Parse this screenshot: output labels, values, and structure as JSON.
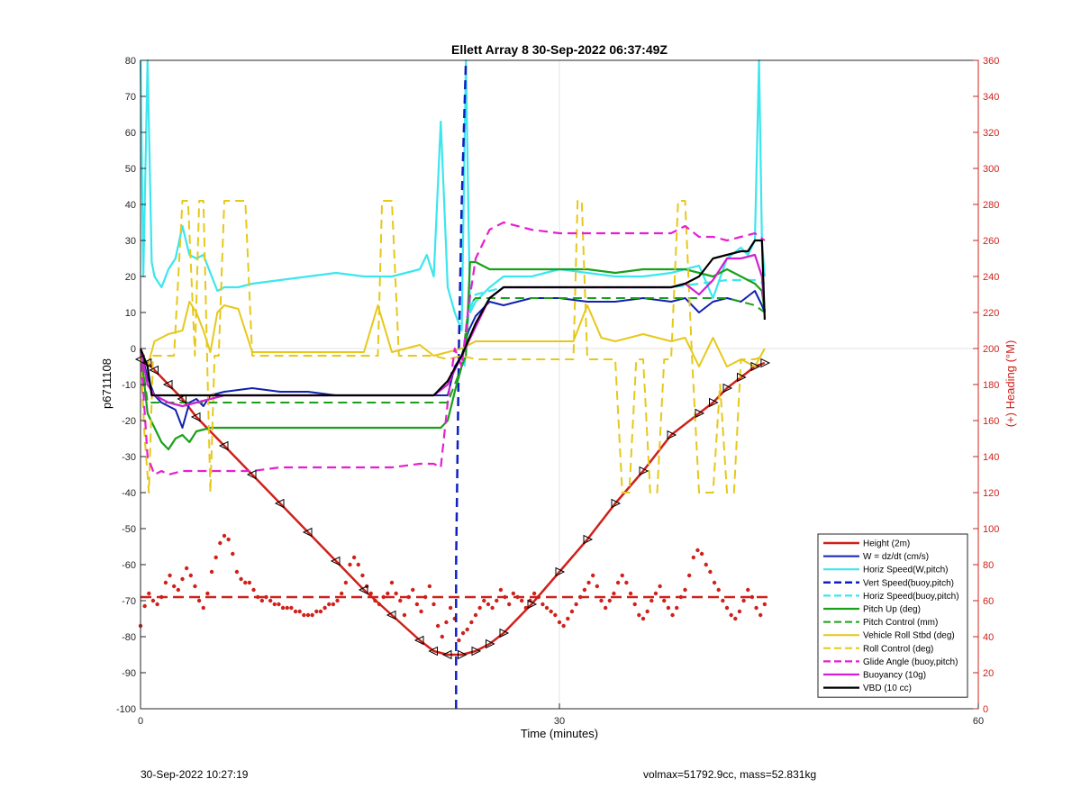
{
  "footer": {
    "timestamp": "30-Sep-2022 10:27:19",
    "volmax_mass": "volmax=51792.9cc, mass=52.831kg"
  },
  "chart_data": {
    "type": "line",
    "title": "Ellett Array 8 30-Sep-2022 06:37:49Z",
    "xlabel": "Time (minutes)",
    "ylabel": "p6711108",
    "ylabel_right": "(+) Heading (°M)",
    "xlim": [
      0,
      60
    ],
    "ylim": [
      -100,
      80
    ],
    "ylim_right": [
      0,
      360
    ],
    "xticks": [
      "0",
      "30",
      "60"
    ],
    "yticks": [
      -100,
      -90,
      -80,
      -70,
      -60,
      -50,
      -40,
      -30,
      -20,
      -10,
      0,
      10,
      20,
      30,
      40,
      50,
      60,
      70,
      80
    ],
    "yticks_right": [
      0,
      20,
      40,
      60,
      80,
      100,
      120,
      140,
      160,
      180,
      200,
      220,
      240,
      260,
      280,
      300,
      320,
      340,
      360
    ],
    "grid": true,
    "legend_position": "bottom-right",
    "heading_series": {
      "name": "",
      "color": "#d0201a",
      "mean_heading": 62,
      "x": [
        0.0,
        0.3,
        0.6,
        0.9,
        1.2,
        1.5,
        1.8,
        2.1,
        2.4,
        2.7,
        3.0,
        3.3,
        3.6,
        3.9,
        4.2,
        4.5,
        4.8,
        5.1,
        5.4,
        5.7,
        6.0,
        6.3,
        6.6,
        6.9,
        7.2,
        7.5,
        7.8,
        8.1,
        8.4,
        8.7,
        9.0,
        9.3,
        9.6,
        9.9,
        10.2,
        10.5,
        10.8,
        11.1,
        11.4,
        11.7,
        12.0,
        12.3,
        12.6,
        12.9,
        13.2,
        13.5,
        13.8,
        14.1,
        14.4,
        14.7,
        15.0,
        15.3,
        15.6,
        15.9,
        16.2,
        16.5,
        16.8,
        17.1,
        17.4,
        17.7,
        18.0,
        18.3,
        18.6,
        18.9,
        19.2,
        19.5,
        19.8,
        20.1,
        20.4,
        20.7,
        21.0,
        21.3,
        21.6,
        21.9,
        22.2,
        22.5,
        22.8,
        23.1,
        23.4,
        23.7,
        24.0,
        24.3,
        24.6,
        24.9,
        25.2,
        25.5,
        25.8,
        26.1,
        26.4,
        26.7,
        27.0,
        27.3,
        27.6,
        27.9,
        28.2,
        28.5,
        28.8,
        29.1,
        29.4,
        29.7,
        30.0,
        30.3,
        30.6,
        30.9,
        31.2,
        31.5,
        31.8,
        32.1,
        32.4,
        32.7,
        33.0,
        33.3,
        33.6,
        33.9,
        34.2,
        34.5,
        34.8,
        35.1,
        35.4,
        35.7,
        36.0,
        36.3,
        36.6,
        36.9,
        37.2,
        37.5,
        37.8,
        38.1,
        38.4,
        38.7,
        39.0,
        39.3,
        39.6,
        39.9,
        40.2,
        40.5,
        40.8,
        41.1,
        41.4,
        41.7,
        42.0,
        42.3,
        42.6,
        42.9,
        43.2,
        43.5,
        43.8,
        44.1,
        44.4,
        44.7
      ],
      "y": [
        46,
        57,
        64,
        60,
        58,
        62,
        70,
        74,
        68,
        66,
        72,
        78,
        74,
        68,
        60,
        56,
        64,
        76,
        84,
        92,
        96,
        94,
        86,
        76,
        72,
        70,
        70,
        66,
        62,
        60,
        62,
        60,
        58,
        58,
        56,
        56,
        56,
        54,
        54,
        52,
        52,
        52,
        54,
        54,
        56,
        58,
        58,
        60,
        64,
        70,
        80,
        84,
        80,
        74,
        68,
        64,
        60,
        58,
        62,
        64,
        70,
        64,
        60,
        52,
        62,
        66,
        58,
        54,
        62,
        68,
        58,
        46,
        40,
        48,
        56,
        50,
        38,
        42,
        44,
        48,
        52,
        56,
        60,
        58,
        56,
        60,
        66,
        62,
        58,
        64,
        62,
        60,
        56,
        60,
        64,
        62,
        58,
        56,
        54,
        52,
        48,
        46,
        50,
        54,
        58,
        62,
        66,
        70,
        74,
        68,
        60,
        56,
        60,
        64,
        70,
        74,
        70,
        64,
        58,
        52,
        50,
        54,
        60,
        64,
        68,
        60,
        56,
        52,
        56,
        62,
        66,
        74,
        84,
        88,
        86,
        80,
        76,
        70,
        66,
        60,
        56,
        52,
        50,
        54,
        60,
        66,
        62,
        56,
        52,
        58
      ]
    },
    "series": [
      {
        "name": "Height (2m)",
        "color": "#d0201a",
        "style": "solid",
        "width": 2.5,
        "x": [
          0,
          0.5,
          1,
          2,
          3,
          4,
          6,
          8,
          10,
          12,
          14,
          16,
          18,
          20,
          21,
          22,
          23,
          24,
          25,
          26,
          28,
          30,
          32,
          34,
          36,
          38,
          40,
          41,
          42,
          43,
          44,
          44.7
        ],
        "y": [
          -3,
          -4,
          -6,
          -10,
          -14,
          -19,
          -27,
          -35,
          -43,
          -51,
          -59,
          -67,
          -74,
          -81,
          -84,
          -85,
          -85,
          -84,
          -82,
          -79,
          -71,
          -62,
          -53,
          -43,
          -34,
          -24,
          -18,
          -15,
          -11,
          -8,
          -5,
          -4
        ]
      },
      {
        "name": "W = dz/dt (cm/s)",
        "color": "#1020b0",
        "style": "solid",
        "width": 2,
        "x": [
          0,
          0.5,
          1,
          1.5,
          2,
          2.5,
          3,
          3.5,
          4,
          4.5,
          5,
          6,
          8,
          10,
          12,
          14,
          16,
          18,
          20,
          21,
          22,
          22.5,
          23,
          23.5,
          24,
          25,
          26,
          28,
          30,
          32,
          34,
          36,
          38,
          39,
          40,
          41,
          42,
          43,
          44,
          44.5,
          44.7
        ],
        "y": [
          0,
          -8,
          -13,
          -15,
          -16,
          -17,
          -22,
          -15,
          -14,
          -16,
          -13,
          -12,
          -11,
          -12,
          -12,
          -13,
          -13,
          -13,
          -13,
          -13,
          -13,
          -5,
          -2,
          5,
          9,
          13,
          12,
          14,
          14,
          13,
          13,
          14,
          13,
          14,
          10,
          13,
          14,
          13,
          16,
          12,
          10
        ]
      },
      {
        "name": "Horiz Speed(W,pitch)",
        "color": "#3be6ee",
        "style": "solid",
        "width": 2.2,
        "x": [
          0,
          0.2,
          0.5,
          0.8,
          1,
          1.5,
          2,
          2.5,
          3,
          3.5,
          4,
          4.5,
          5,
          5.5,
          6,
          7,
          8,
          10,
          12,
          14,
          16,
          18,
          19,
          20,
          20.5,
          21,
          21.5,
          22,
          22.5,
          23,
          23.3,
          23.6,
          24,
          25,
          26,
          28,
          30,
          32,
          34,
          36,
          38,
          39,
          40,
          41,
          42,
          43,
          43.5,
          44,
          44.3,
          44.5,
          44.7
        ],
        "y": [
          80,
          20,
          80,
          24,
          20,
          17,
          22,
          25,
          34,
          26,
          25,
          26,
          21,
          16,
          17,
          17,
          18,
          19,
          20,
          21,
          20,
          20,
          21,
          22,
          26,
          20,
          63,
          17,
          10,
          5,
          80,
          10,
          13,
          17,
          20,
          20,
          22,
          21,
          20,
          20,
          21,
          22,
          23,
          14,
          25,
          28,
          26,
          30,
          80,
          30,
          20
        ]
      },
      {
        "name": "Vert Speed(buoy,pitch)",
        "color": "#1020c0",
        "style": "dash",
        "width": 2.5,
        "x": [
          22.6,
          22.6,
          22.8,
          23,
          23.3
        ],
        "y": [
          -100,
          -60,
          0,
          40,
          80
        ]
      },
      {
        "name": "Horiz Speed(buoy,pitch)",
        "color": "#3be6ee",
        "style": "dash",
        "width": 2.2,
        "x": [
          23.2,
          23.5,
          24,
          26,
          30,
          34,
          38,
          40,
          42,
          44,
          44.7
        ],
        "y": [
          -5,
          10,
          15,
          17,
          17,
          17,
          17,
          18,
          19,
          19,
          18
        ]
      },
      {
        "name": "Pitch Up (deg)",
        "color": "#1aa01a",
        "style": "solid",
        "width": 2.2,
        "x": [
          0,
          0.5,
          1,
          1.5,
          2,
          2.5,
          3,
          3.5,
          4,
          5,
          6,
          8,
          10,
          12,
          14,
          16,
          18,
          20,
          21,
          21.5,
          22,
          22.5,
          23,
          23.3,
          23.6,
          24,
          25,
          26,
          28,
          30,
          32,
          34,
          36,
          38,
          39,
          40,
          41,
          42,
          43,
          44,
          44.5,
          44.7
        ],
        "y": [
          0,
          -18,
          -22,
          -26,
          -28,
          -25,
          -24,
          -26,
          -23,
          -22,
          -22,
          -22,
          -22,
          -22,
          -22,
          -22,
          -22,
          -22,
          -22,
          -22,
          -20,
          -12,
          -5,
          -2,
          24,
          24,
          22,
          22,
          22,
          22,
          22,
          21,
          22,
          22,
          22,
          21,
          20,
          22,
          20,
          18,
          16,
          10
        ]
      },
      {
        "name": "Pitch Control (mm)",
        "color": "#1aa01a",
        "style": "dash",
        "width": 2,
        "x": [
          0,
          0.5,
          1,
          5,
          10,
          15,
          20,
          21,
          22,
          23,
          23.5,
          24,
          25,
          30,
          35,
          40,
          42,
          44,
          44.7
        ],
        "y": [
          0,
          -15,
          -15,
          -15,
          -15,
          -15,
          -15,
          -15,
          -15,
          -5,
          12,
          14,
          14,
          14,
          14,
          14,
          14,
          12,
          10
        ]
      },
      {
        "name": "Vehicle Roll Stbd (deg)",
        "color": "#e6c81a",
        "style": "solid",
        "width": 2,
        "x": [
          0,
          0.5,
          1,
          2,
          3,
          3.5,
          4,
          4.5,
          5,
          5.5,
          6,
          7,
          8,
          10,
          12,
          14,
          15,
          16,
          17,
          18,
          19,
          20,
          21,
          22,
          23,
          24,
          26,
          28,
          30,
          31,
          32,
          33,
          34,
          35,
          36,
          37,
          38,
          39,
          40,
          41,
          42,
          43,
          44,
          44.7
        ],
        "y": [
          0,
          -5,
          2,
          4,
          5,
          13,
          10,
          5,
          -1,
          10,
          12,
          11,
          -1,
          -1,
          -1,
          -1,
          -1,
          -1,
          12,
          -1,
          0,
          1,
          -2,
          -1,
          0,
          2,
          2,
          2,
          2,
          2,
          12,
          3,
          2,
          3,
          4,
          3,
          2,
          3,
          -5,
          3,
          -5,
          -3,
          -5,
          0
        ]
      },
      {
        "name": "Roll Control (deg)",
        "color": "#e6c81a",
        "style": "dash",
        "width": 2,
        "x": [
          0,
          0.3,
          0.6,
          0.9,
          1.2,
          2.4,
          3.0,
          3.4,
          3.9,
          4.2,
          4.5,
          5.0,
          5.3,
          5.6,
          6.0,
          6.5,
          7.0,
          7.5,
          8.0,
          10,
          12,
          14,
          16,
          17,
          17.3,
          17.7,
          18.0,
          18.5,
          19,
          20,
          21,
          22,
          23,
          24,
          26,
          28,
          30,
          31,
          31.3,
          31.6,
          32,
          34,
          34.5,
          35,
          35.5,
          36,
          36.5,
          37,
          37.5,
          38,
          38.5,
          39,
          39.5,
          40,
          41,
          41.5,
          42,
          42.5,
          43,
          44,
          44.7
        ],
        "y": [
          -2,
          -25,
          -40,
          -2,
          -2,
          -2,
          41,
          41,
          -2,
          41,
          41,
          -40,
          -2,
          -2,
          41,
          41,
          41,
          41,
          -2,
          -2,
          -2,
          -2,
          -2,
          -2,
          41,
          41,
          41,
          -2,
          -2,
          -2,
          -2,
          -3,
          -2,
          -3,
          -3,
          -3,
          -3,
          -3,
          41,
          41,
          -3,
          -3,
          -40,
          -40,
          -3,
          -3,
          -40,
          -40,
          -3,
          -3,
          41,
          41,
          -3,
          -40,
          -40,
          -10,
          -40,
          -40,
          -3,
          -3,
          -2
        ]
      },
      {
        "name": "Glide Angle (buoy,pitch)",
        "color": "#e61ed2",
        "style": "dash",
        "width": 2.2,
        "x": [
          0,
          0.5,
          1,
          1.5,
          2,
          3,
          4,
          5,
          6,
          8,
          10,
          12,
          14,
          16,
          18,
          20,
          21,
          21.5,
          22,
          22.5,
          23,
          23.5,
          24,
          25,
          26,
          28,
          30,
          32,
          34,
          36,
          38,
          39,
          40,
          41,
          42,
          43,
          44,
          44.7
        ],
        "y": [
          0,
          -30,
          -35,
          -34,
          -35,
          -34,
          -34,
          -34,
          -34,
          -34,
          -33,
          -33,
          -33,
          -33,
          -33,
          -32,
          -32,
          -33,
          -15,
          0,
          -5,
          12,
          25,
          33,
          35,
          33,
          32,
          32,
          32,
          32,
          32,
          34,
          31,
          31,
          30,
          31,
          32,
          30
        ]
      },
      {
        "name": "Buoyancy (10g)",
        "color": "#d020d0",
        "style": "solid",
        "width": 2.2,
        "x": [
          0,
          0.5,
          1,
          2,
          3,
          4,
          5,
          6,
          8,
          10,
          12,
          14,
          16,
          18,
          20,
          21,
          22,
          23,
          24,
          25,
          26,
          28,
          30,
          32,
          34,
          36,
          38,
          39,
          40,
          41,
          42,
          43,
          44,
          44.5,
          44.7
        ],
        "y": [
          0,
          -10,
          -13,
          -15,
          -16,
          -15,
          -14,
          -13,
          -13,
          -13,
          -13,
          -13,
          -13,
          -13,
          -13,
          -13,
          -10,
          -2,
          6,
          14,
          17,
          17,
          17,
          17,
          17,
          17,
          17,
          18,
          15,
          19,
          25,
          25,
          26,
          20,
          10
        ]
      },
      {
        "name": "VBD (10 cc)",
        "color": "#000000",
        "style": "solid",
        "width": 2.2,
        "x": [
          0,
          0.5,
          0.8,
          1,
          2,
          4,
          6,
          8,
          10,
          12,
          14,
          16,
          18,
          20,
          21,
          22,
          23,
          24,
          25,
          26,
          28,
          30,
          32,
          34,
          36,
          38,
          39,
          40,
          41,
          42,
          43,
          43.5,
          44,
          44.5,
          44.7
        ],
        "y": [
          0,
          -5,
          -13,
          -13,
          -13,
          -13,
          -13,
          -13,
          -13,
          -13,
          -13,
          -13,
          -13,
          -13,
          -13,
          -9,
          -2,
          7,
          14,
          17,
          17,
          17,
          17,
          17,
          17,
          17,
          18,
          20,
          25,
          26,
          27,
          27,
          30,
          30,
          8
        ]
      }
    ]
  }
}
